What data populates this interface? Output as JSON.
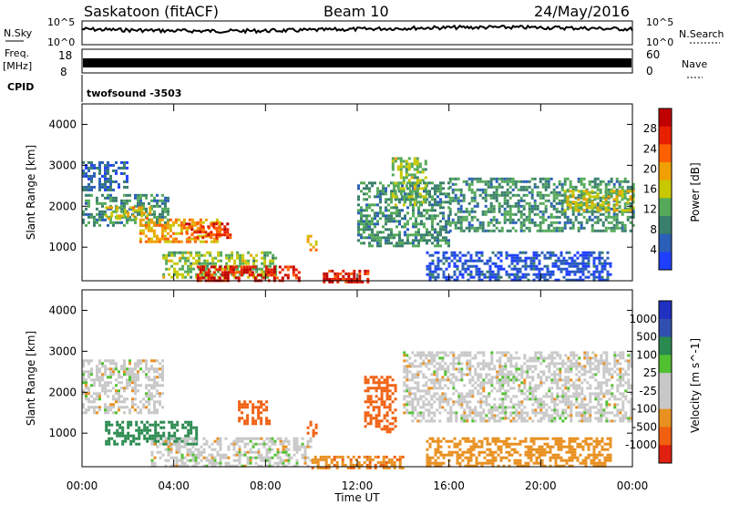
{
  "header": {
    "station": "Saskatoon (fitACF)",
    "beam": "Beam 10",
    "date": "24/May/2016"
  },
  "top_panels": {
    "nsky_label": "N.Sky",
    "nsky_ticks": [
      "10^5",
      "10^0"
    ],
    "nsearch_label": "N.Search",
    "nsearch_ticks": [
      "10^5",
      "10^0"
    ],
    "freq_label": "Freq.",
    "freq_unit": "[MHz]",
    "freq_ticks": [
      "18",
      "8"
    ],
    "nave_label": "Nave",
    "nave_ticks": [
      "60",
      "0"
    ],
    "cpid_label": "CPID",
    "cpid_value": "twofsound -3503"
  },
  "colors": {
    "power_scale": [
      "#1f3fff",
      "#2b5fb8",
      "#3a7f6c",
      "#55aa5a",
      "#c8c800",
      "#f0a000",
      "#ff6000",
      "#e82000",
      "#c00000"
    ],
    "velocity_scale": [
      "#2030c0",
      "#3050b0",
      "#2a8a50",
      "#50c030",
      "#c8c8c8",
      "#c8c8c8",
      "#e89020",
      "#f06010",
      "#e02010"
    ]
  },
  "chart_data": [
    {
      "type": "heatmap",
      "name": "Power",
      "xlabel": "",
      "ylabel": "Slant Range [km]",
      "xlim": [
        "00:00",
        "24:00"
      ],
      "ylim": [
        180,
        4500
      ],
      "y_ticks": [
        1000,
        2000,
        3000,
        4000
      ],
      "colorbar": {
        "label": "Power [dB]",
        "range": [
          0,
          32
        ],
        "ticks": [
          4,
          8,
          12,
          16,
          20,
          24,
          28
        ]
      },
      "regions": [
        {
          "t0": 0.0,
          "t1": 3.8,
          "r0": 1500,
          "r1": 2300,
          "value": 10
        },
        {
          "t0": 0.0,
          "t1": 2.0,
          "r0": 2400,
          "r1": 3100,
          "value": 6
        },
        {
          "t0": 1.0,
          "t1": 3.0,
          "r0": 1700,
          "r1": 2000,
          "value": 18
        },
        {
          "t0": 2.5,
          "t1": 6.0,
          "r0": 1100,
          "r1": 1700,
          "value": 20
        },
        {
          "t0": 4.5,
          "t1": 6.5,
          "r0": 1200,
          "r1": 1600,
          "value": 26
        },
        {
          "t0": 3.5,
          "t1": 8.5,
          "r0": 250,
          "r1": 900,
          "value": 14
        },
        {
          "t0": 5.0,
          "t1": 9.5,
          "r0": 180,
          "r1": 550,
          "value": 28
        },
        {
          "t0": 10.5,
          "t1": 12.5,
          "r0": 180,
          "r1": 450,
          "value": 28
        },
        {
          "t0": 9.8,
          "t1": 10.2,
          "r0": 900,
          "r1": 1300,
          "value": 18
        },
        {
          "t0": 12.0,
          "t1": 16.0,
          "r0": 1000,
          "r1": 2600,
          "value": 10
        },
        {
          "t0": 13.5,
          "t1": 15.0,
          "r0": 2000,
          "r1": 3200,
          "value": 14
        },
        {
          "t0": 16.0,
          "t1": 24.0,
          "r0": 1400,
          "r1": 2700,
          "value": 10
        },
        {
          "t0": 21.0,
          "t1": 24.0,
          "r0": 1900,
          "r1": 2400,
          "value": 16
        },
        {
          "t0": 15.0,
          "t1": 23.0,
          "r0": 200,
          "r1": 900,
          "value": 4
        }
      ]
    },
    {
      "type": "heatmap",
      "name": "Velocity",
      "xlabel": "Time UT",
      "ylabel": "Slant Range [km]",
      "xlim": [
        "00:00",
        "24:00"
      ],
      "x_ticks": [
        "00:00",
        "04:00",
        "08:00",
        "12:00",
        "16:00",
        "20:00",
        "00:00"
      ],
      "ylim": [
        180,
        4500
      ],
      "y_ticks": [
        1000,
        2000,
        3000,
        4000
      ],
      "colorbar": {
        "label": "Velocity [m s^-1]",
        "ticks": [
          "1000",
          "500",
          "100",
          "25",
          "-25",
          "-100",
          "-500",
          "-1000"
        ]
      },
      "regions": [
        {
          "t0": 0.0,
          "t1": 3.5,
          "r0": 1500,
          "r1": 2800,
          "value": 0
        },
        {
          "t0": 1.0,
          "t1": 5.0,
          "r0": 700,
          "r1": 1300,
          "value": 150
        },
        {
          "t0": 3.0,
          "t1": 10.0,
          "r0": 200,
          "r1": 900,
          "value": 0
        },
        {
          "t0": 6.8,
          "t1": 8.2,
          "r0": 1200,
          "r1": 1800,
          "value": -300
        },
        {
          "t0": 9.8,
          "t1": 10.2,
          "r0": 900,
          "r1": 1300,
          "value": -300
        },
        {
          "t0": 10.0,
          "t1": 14.0,
          "r0": 180,
          "r1": 450,
          "value": -80
        },
        {
          "t0": 12.3,
          "t1": 13.7,
          "r0": 1000,
          "r1": 2400,
          "value": -400
        },
        {
          "t0": 14.0,
          "t1": 24.0,
          "r0": 1300,
          "r1": 3000,
          "value": 0
        },
        {
          "t0": 15.0,
          "t1": 23.0,
          "r0": 200,
          "r1": 900,
          "value": -60
        }
      ]
    }
  ]
}
